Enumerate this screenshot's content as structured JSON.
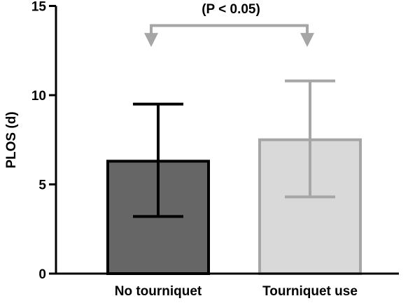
{
  "chart_data": {
    "type": "bar",
    "title": "",
    "xlabel": "",
    "ylabel": "PLOS (d)",
    "ylim": [
      0,
      15
    ],
    "yticks": [
      0,
      5,
      10,
      15
    ],
    "grid": false,
    "categories": [
      "No tourniquet",
      "Tourniquet use"
    ],
    "values": [
      6.3,
      7.5
    ],
    "error_low": [
      3.2,
      4.3
    ],
    "error_high": [
      9.5,
      10.8
    ],
    "bar_fill_colors": [
      "#666666",
      "#d9d9d9"
    ],
    "bar_stroke_colors": [
      "#000000",
      "#a6a6a6"
    ],
    "annotation": {
      "text": "(P < 0.05)",
      "color": "#a6a6a6",
      "arrow_tip_value": 12.7,
      "bracket_value": 13.9
    }
  }
}
